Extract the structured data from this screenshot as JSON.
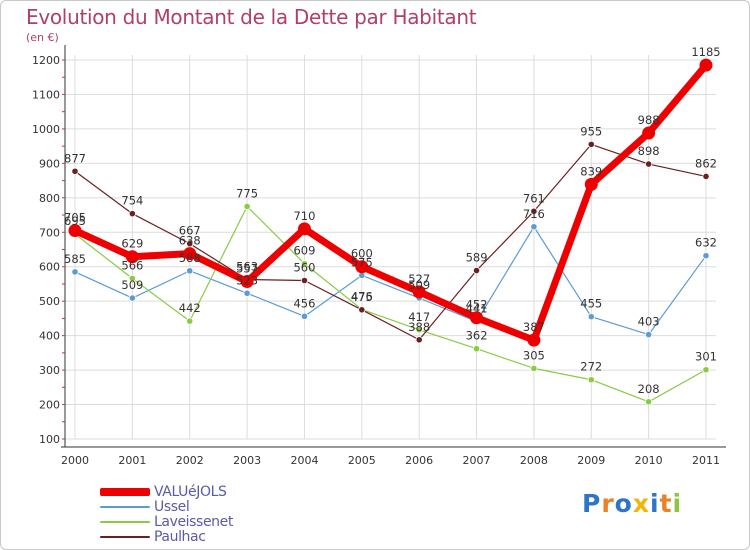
{
  "title": "Evolution du Montant de la Dette par Habitant",
  "unit_label": "(en €)",
  "chart_data": {
    "type": "line",
    "title": "Evolution du Montant de la Dette par Habitant",
    "ylabel": "(en €)",
    "xlabel": "",
    "x": [
      "2000",
      "2001",
      "2002",
      "2003",
      "2004",
      "2005",
      "2006",
      "2007",
      "2008",
      "2009",
      "2010",
      "2011"
    ],
    "ylim": [
      100,
      1200
    ],
    "yticks": [
      100,
      200,
      300,
      400,
      500,
      600,
      700,
      800,
      900,
      1000,
      1100,
      1200
    ],
    "grid": true,
    "legend_position": "bottom-left",
    "series": [
      {
        "name": "VALUéJOLS",
        "color": "#ee0000",
        "values": [
          705,
          629,
          638,
          557,
          710,
          600,
          527,
          452,
          387,
          839,
          988,
          1185
        ]
      },
      {
        "name": "Ussel",
        "color": "#5b9bd5",
        "values": [
          585,
          509,
          588,
          523,
          456,
          575,
          509,
          441,
          716,
          455,
          403,
          632
        ]
      },
      {
        "name": "Laveissenet",
        "color": "#88cc44",
        "values": [
          695,
          566,
          442,
          775,
          609,
          476,
          417,
          362,
          305,
          272,
          208,
          301
        ]
      },
      {
        "name": "Paulhac",
        "color": "#6b1f1f",
        "values": [
          877,
          754,
          667,
          563,
          560,
          475,
          388,
          589,
          761,
          955,
          898,
          862
        ]
      }
    ]
  },
  "logo": {
    "letters": [
      "P",
      "r",
      "o",
      "x",
      "i",
      "t",
      "i"
    ],
    "colors": [
      "#2e75c8",
      "#e8832a",
      "#2e75c8",
      "#f2b705",
      "#2e75c8",
      "#e8832a",
      "#8cc63f"
    ]
  }
}
